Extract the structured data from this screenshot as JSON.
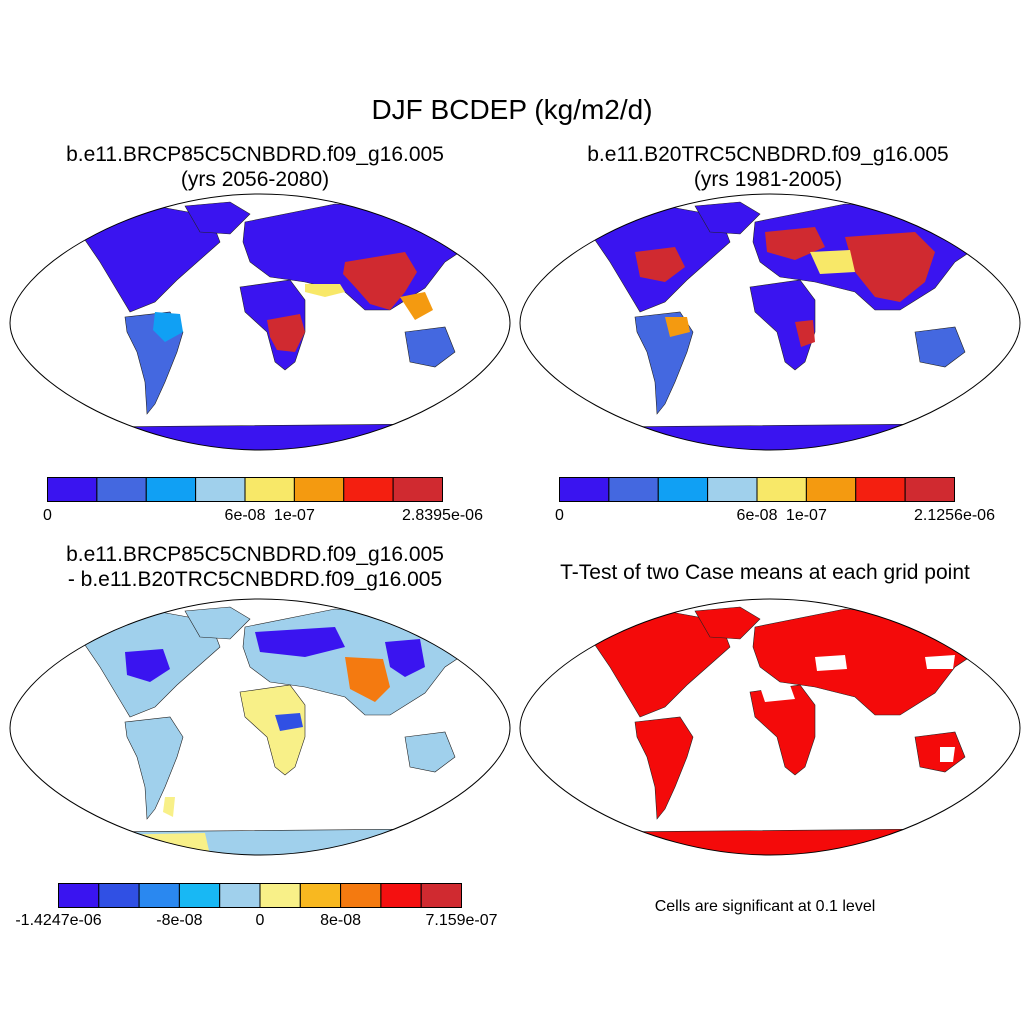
{
  "title": "DJF BCDEP (kg/m2/d)",
  "panels": [
    {
      "id": "p1",
      "title_line1": "b.e11.BRCP85C5CNBDRD.f09_g16.005",
      "title_line2": "(yrs 2056-2080)",
      "colorbar": {
        "colors": [
          "#3a14f0",
          "#4468e0",
          "#10a0f4",
          "#a0d0ec",
          "#f8e868",
          "#f49a10",
          "#f41f10",
          "#d02a30"
        ],
        "tick_labels": [
          "0",
          "6e-08",
          "1e-07",
          "2.8395e-06"
        ],
        "tick_boundary_index": [
          0,
          4,
          5,
          8
        ]
      }
    },
    {
      "id": "p2",
      "title_line1": "b.e11.B20TRC5CNBDRD.f09_g16.005",
      "title_line2": "(yrs 1981-2005)",
      "colorbar": {
        "colors": [
          "#3a14f0",
          "#4468e0",
          "#10a0f4",
          "#a0d0ec",
          "#f8e868",
          "#f49a10",
          "#f41f10",
          "#d02a30"
        ],
        "tick_labels": [
          "0",
          "6e-08",
          "1e-07",
          "2.1256e-06"
        ],
        "tick_boundary_index": [
          0,
          4,
          5,
          8
        ]
      }
    },
    {
      "id": "p3",
      "title_line1": "b.e11.BRCP85C5CNBDRD.f09_g16.005",
      "title_line2": "- b.e11.B20TRC5CNBDRD.f09_g16.005",
      "colorbar": {
        "colors": [
          "#3a14f0",
          "#3050e4",
          "#2a88f0",
          "#18b8f4",
          "#a0d0ec",
          "#f8f088",
          "#f8b820",
          "#f47a10",
          "#f41010",
          "#d02a30"
        ],
        "tick_labels": [
          "-1.4247e-06",
          "-8e-08",
          "0",
          "8e-08",
          "7.159e-07"
        ],
        "tick_boundary_index": [
          0,
          3,
          5,
          7,
          10
        ]
      }
    },
    {
      "id": "p4",
      "title": "T-Test of two Case means at each grid point",
      "note": "Cells are significant at 0.1 level",
      "color": "#f40a0a"
    }
  ]
}
